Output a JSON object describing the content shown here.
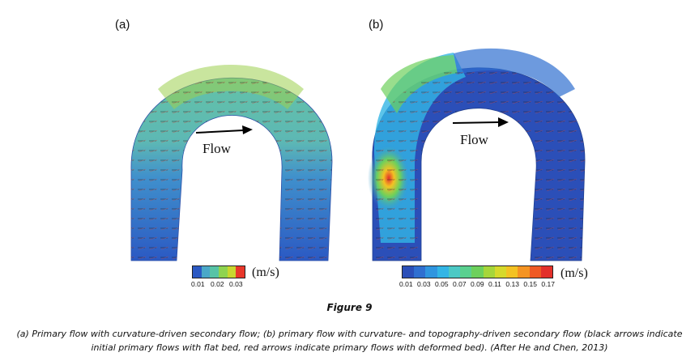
{
  "panel_a": {
    "label": "(a)",
    "flow_label": "Flow",
    "colorbar_ticks": [
      "0.01",
      "0.02",
      "0.03"
    ],
    "colorbar_colors": [
      "#2b59c3",
      "#4aa8c8",
      "#57c3a6",
      "#8fd34f",
      "#c9d62e",
      "#e8372a"
    ],
    "unit": "(m/s)"
  },
  "panel_b": {
    "label": "(b)",
    "flow_label": "Flow",
    "colorbar_ticks": [
      "0.01",
      "0.03",
      "0.05",
      "0.07",
      "0.09",
      "0.11",
      "0.13",
      "0.15",
      "0.17"
    ],
    "colorbar_colors": [
      "#2b4fb8",
      "#2f6fd0",
      "#2f95df",
      "#33b5e5",
      "#4cc9c5",
      "#5ad08f",
      "#6dd05c",
      "#a6d63a",
      "#d6d92b",
      "#f3c223",
      "#f59423",
      "#ef5a24",
      "#e3302a"
    ],
    "unit": "(m/s)"
  },
  "caption": {
    "title": "Figure 9",
    "text": "(a) Primary flow with curvature-driven secondary flow; (b) primary flow with curvature- and topography-driven secondary flow (black arrows indicate initial primary flows with flat bed, red arrows indicate primary flows with deformed bed). (After He and Chen, 2013)"
  }
}
